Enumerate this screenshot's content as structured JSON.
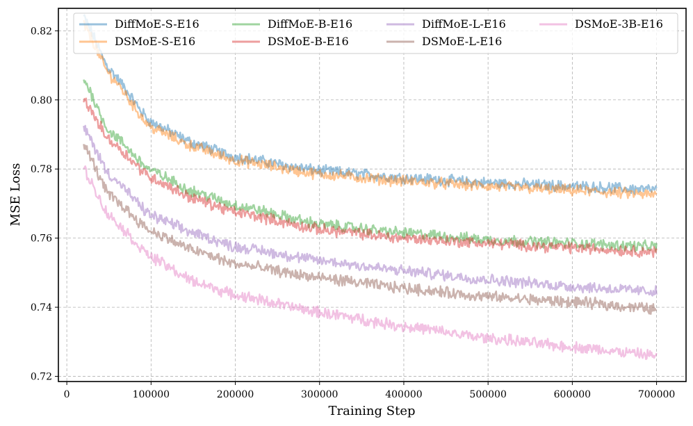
{
  "chart_data": {
    "type": "line",
    "title": "",
    "xlabel": "Training Step",
    "ylabel": "MSE Loss",
    "xlim": [
      -10000,
      735000
    ],
    "ylim": [
      0.7185,
      0.8265
    ],
    "xticks": [
      0,
      100000,
      200000,
      300000,
      400000,
      500000,
      600000,
      700000
    ],
    "xtick_labels": [
      "0",
      "100000",
      "200000",
      "300000",
      "400000",
      "500000",
      "600000",
      "700000"
    ],
    "yticks": [
      0.72,
      0.74,
      0.76,
      0.78,
      0.8,
      0.82
    ],
    "ytick_labels": [
      "0.72",
      "0.74",
      "0.76",
      "0.78",
      "0.80",
      "0.82"
    ],
    "grid": true,
    "legend_position": "top",
    "series": [
      {
        "name": "DiffMoE-S-E16",
        "color": "#1f77b4",
        "x": [
          20000,
          50000,
          100000,
          150000,
          200000,
          300000,
          400000,
          500000,
          600000,
          700000
        ],
        "values": [
          0.824,
          0.809,
          0.7935,
          0.7875,
          0.7835,
          0.7795,
          0.7775,
          0.776,
          0.775,
          0.774
        ]
      },
      {
        "name": "DSMoE-S-E16",
        "color": "#ff7f0e",
        "x": [
          20000,
          50000,
          100000,
          150000,
          200000,
          300000,
          400000,
          500000,
          600000,
          700000
        ],
        "values": [
          0.822,
          0.8075,
          0.792,
          0.7865,
          0.7825,
          0.7785,
          0.7765,
          0.775,
          0.7738,
          0.7725
        ]
      },
      {
        "name": "DiffMoE-B-E16",
        "color": "#2ca02c",
        "x": [
          20000,
          50000,
          100000,
          150000,
          200000,
          300000,
          400000,
          500000,
          600000,
          700000
        ],
        "values": [
          0.806,
          0.791,
          0.7795,
          0.7735,
          0.7695,
          0.764,
          0.7615,
          0.7595,
          0.7585,
          0.7575
        ]
      },
      {
        "name": "DSMoE-B-E16",
        "color": "#d62728",
        "x": [
          20000,
          50000,
          100000,
          150000,
          200000,
          300000,
          400000,
          500000,
          600000,
          700000
        ],
        "values": [
          0.8,
          0.7885,
          0.7775,
          0.7715,
          0.7675,
          0.7625,
          0.76,
          0.7585,
          0.7572,
          0.756
        ]
      },
      {
        "name": "DiffMoE-L-E16",
        "color": "#9467bd",
        "x": [
          20000,
          50000,
          100000,
          150000,
          200000,
          300000,
          400000,
          500000,
          600000,
          700000
        ],
        "values": [
          0.792,
          0.7785,
          0.7665,
          0.7615,
          0.7575,
          0.7535,
          0.7505,
          0.748,
          0.746,
          0.7445
        ]
      },
      {
        "name": "DSMoE-L-E16",
        "color": "#8c564b",
        "x": [
          20000,
          50000,
          100000,
          150000,
          200000,
          300000,
          400000,
          500000,
          600000,
          700000
        ],
        "values": [
          0.787,
          0.7725,
          0.762,
          0.7565,
          0.7525,
          0.7485,
          0.7455,
          0.743,
          0.7415,
          0.7395
        ]
      },
      {
        "name": "DSMoE-3B-E16",
        "color": "#e377c2",
        "x": [
          20000,
          50000,
          100000,
          150000,
          200000,
          300000,
          400000,
          500000,
          600000,
          700000
        ],
        "values": [
          0.78,
          0.7665,
          0.7545,
          0.7475,
          0.7435,
          0.7385,
          0.7345,
          0.731,
          0.7285,
          0.726
        ]
      }
    ]
  }
}
